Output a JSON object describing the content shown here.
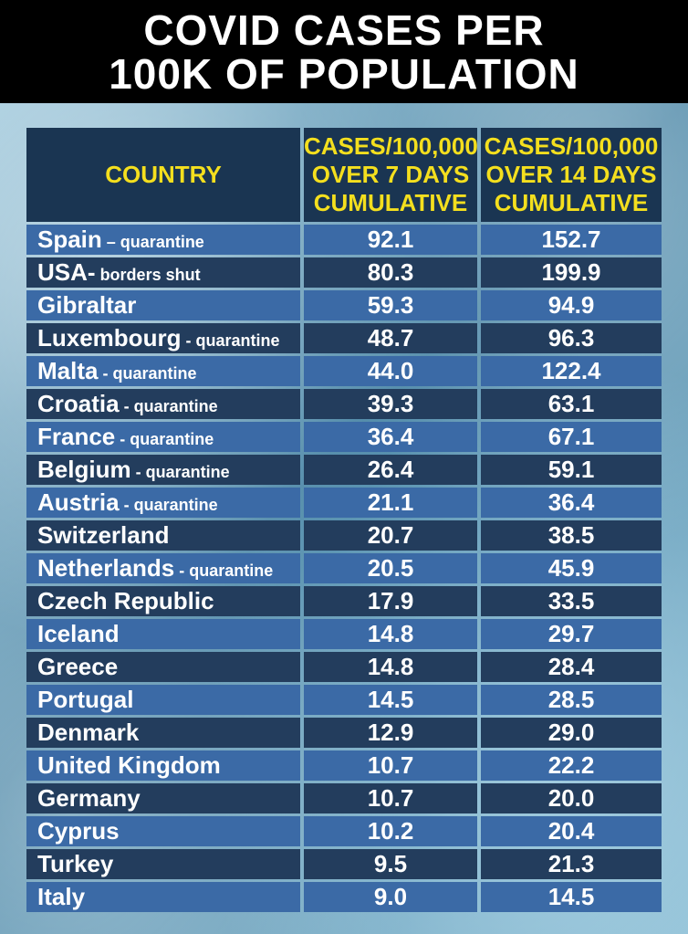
{
  "title": {
    "line1": "COVID CASES PER",
    "line2": "100K OF POPULATION"
  },
  "colors": {
    "header_bg": "#000000",
    "title_text": "#ffffff",
    "column_header_text": "#f4df1e",
    "column_header_bg": "#1a3552",
    "row_light": "#3b6aa6",
    "row_dark": "#233d5d"
  },
  "chart_data": {
    "type": "table",
    "title": "COVID CASES PER 100K OF POPULATION",
    "columns": [
      "COUNTRY",
      "CASES/100,000 OVER 7 DAYS CUMULATIVE",
      "CASES/100,000 OVER 14 DAYS CUMULATIVE"
    ],
    "column_header_lines": [
      [
        "COUNTRY"
      ],
      [
        "CASES/100,000",
        "OVER 7 DAYS",
        "CUMULATIVE"
      ],
      [
        "CASES/100,000",
        "OVER 14 DAYS",
        "CUMULATIVE"
      ]
    ],
    "rows": [
      {
        "country": "Spain",
        "note": " – quarantine",
        "days7": "92.1",
        "days14": "152.7"
      },
      {
        "country": "USA-",
        "note": " borders shut",
        "days7": "80.3",
        "days14": "199.9"
      },
      {
        "country": "Gibraltar",
        "note": "",
        "days7": "59.3",
        "days14": "94.9"
      },
      {
        "country": "Luxembourg",
        "note": " - quarantine",
        "days7": "48.7",
        "days14": "96.3"
      },
      {
        "country": "Malta",
        "note": " - quarantine",
        "days7": "44.0",
        "days14": "122.4"
      },
      {
        "country": "Croatia",
        "note": " - quarantine",
        "days7": "39.3",
        "days14": "63.1"
      },
      {
        "country": "France",
        "note": " - quarantine",
        "days7": "36.4",
        "days14": "67.1"
      },
      {
        "country": "Belgium",
        "note": " - quarantine",
        "days7": "26.4",
        "days14": "59.1"
      },
      {
        "country": "Austria",
        "note": " - quarantine",
        "days7": "21.1",
        "days14": "36.4"
      },
      {
        "country": "Switzerland",
        "note": "",
        "days7": "20.7",
        "days14": "38.5"
      },
      {
        "country": "Netherlands",
        "note": " - quarantine",
        "days7": "20.5",
        "days14": "45.9"
      },
      {
        "country": "Czech Republic",
        "note": "",
        "days7": "17.9",
        "days14": "33.5"
      },
      {
        "country": "Iceland",
        "note": "",
        "days7": "14.8",
        "days14": "29.7"
      },
      {
        "country": "Greece",
        "note": "",
        "days7": "14.8",
        "days14": "28.4"
      },
      {
        "country": "Portugal",
        "note": "",
        "days7": "14.5",
        "days14": "28.5"
      },
      {
        "country": "Denmark",
        "note": "",
        "days7": "12.9",
        "days14": "29.0"
      },
      {
        "country": "United Kingdom",
        "note": "",
        "days7": "10.7",
        "days14": "22.2"
      },
      {
        "country": "Germany",
        "note": "",
        "days7": "10.7",
        "days14": "20.0"
      },
      {
        "country": "Cyprus",
        "note": "",
        "days7": "10.2",
        "days14": "20.4"
      },
      {
        "country": "Turkey",
        "note": "",
        "days7": "9.5",
        "days14": "21.3"
      },
      {
        "country": "Italy",
        "note": "",
        "days7": "9.0",
        "days14": "14.5"
      }
    ]
  }
}
